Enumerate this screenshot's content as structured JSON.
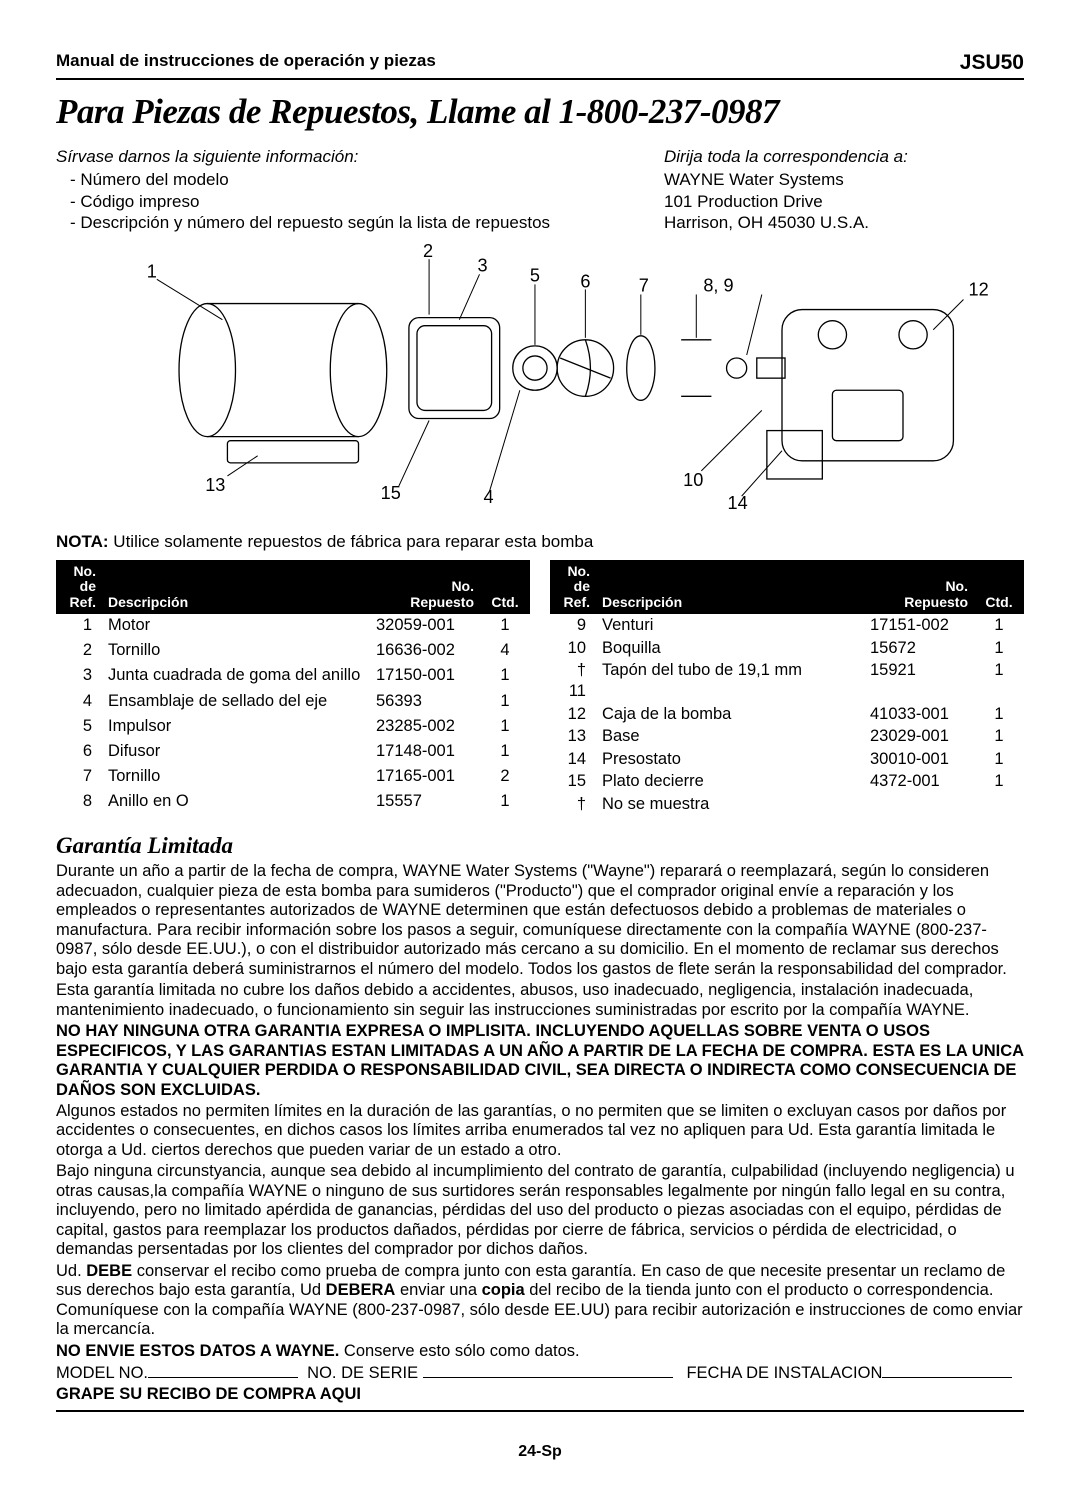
{
  "header": {
    "left": "Manual de instrucciones de operación y piezas",
    "right": "JSU50"
  },
  "title": "Para Piezas de Repuestos, Llame al 1-800-237-0987",
  "info": {
    "provide_heading": "Sírvase darnos la siguiente información:",
    "provide_lines": [
      "- Número del modelo",
      "- Código impreso",
      "- Descripción y número del repuesto según la lista de repuestos"
    ],
    "address_heading": "Dirija toda la correspondencia a:",
    "address_lines": [
      "WAYNE Water Systems",
      "101 Production Drive",
      "Harrison, OH   45030   U.S.A."
    ]
  },
  "diagram": {
    "callout_labels": [
      "1",
      "2",
      "3",
      "4",
      "5",
      "6",
      "7",
      "8, 9",
      "10",
      "12",
      "13",
      "14",
      "15"
    ]
  },
  "nota_bold": "NOTA:",
  "nota_text": " Utilice solamente repuestos de fábrica para reparar esta bomba",
  "table_headers": {
    "ref": "No.\nde\nRef.",
    "desc": "Descripción",
    "part": "No.\nRepuesto",
    "qty": "Ctd."
  },
  "parts_left": [
    {
      "ref": "1",
      "desc": "Motor",
      "part": "32059-001",
      "qty": "1"
    },
    {
      "ref": "2",
      "desc": "Tornillo",
      "part": "16636-002",
      "qty": "4"
    },
    {
      "ref": "3",
      "desc": "Junta cuadrada de goma del anillo",
      "part": "17150-001",
      "qty": "1"
    },
    {
      "ref": "4",
      "desc": "Ensamblaje de sellado del eje",
      "part": "56393",
      "qty": "1"
    },
    {
      "ref": "5",
      "desc": "Impulsor",
      "part": "23285-002",
      "qty": "1"
    },
    {
      "ref": "6",
      "desc": "Difusor",
      "part": "17148-001",
      "qty": "1"
    },
    {
      "ref": "7",
      "desc": "Tornillo",
      "part": "17165-001",
      "qty": "2"
    },
    {
      "ref": "8",
      "desc": "Anillo en O",
      "part": "15557",
      "qty": "1"
    }
  ],
  "parts_right": [
    {
      "ref": "9",
      "desc": "Venturi",
      "part": "17151-002",
      "qty": "1"
    },
    {
      "ref": "10",
      "desc": "Boquilla",
      "part": "15672",
      "qty": "1"
    },
    {
      "ref": "† 11",
      "desc": "Tapón del tubo de 19,1 mm",
      "part": "15921",
      "qty": "1"
    },
    {
      "ref": "12",
      "desc": "Caja de la bomba",
      "part": "41033-001",
      "qty": "1"
    },
    {
      "ref": "13",
      "desc": "Base",
      "part": "23029-001",
      "qty": "1"
    },
    {
      "ref": "14",
      "desc": "Presostato",
      "part": "30010-001",
      "qty": "1"
    },
    {
      "ref": "15",
      "desc": "Plato decierre",
      "part": "4372-001",
      "qty": "1"
    },
    {
      "ref": "†",
      "desc": "No se muestra",
      "part": "",
      "qty": ""
    }
  ],
  "warranty": {
    "title": "Garantía Limitada",
    "p1": "Durante un año a partir de la fecha de compra, WAYNE Water Systems (\"Wayne\") reparará o reemplazará, según lo consideren adecuadon, cualquier pieza de esta bomba para sumideros (\"Producto\") que el comprador original envíe a reparación y los empleados o representantes autorizados de WAYNE determinen que están defectuosos debido a problemas de materiales o manufactura. Para recibir información sobre los pasos a seguir, comuníquese directamente con la compañía WAYNE (800-237-0987, sólo desde EE.UU.), o con el distribuidor autorizado más cercano a su domicilio. En el momento de reclamar sus derechos bajo esta garantía deberá suministrarnos el número del modelo. Todos los gastos de flete serán la responsabilidad del comprador.",
    "p2": "Esta garantía limitada no cubre los daños debido a accidentes, abusos, uso inadecuado, negligencia, instalación inadecuada, mantenimiento inadecuado, o funcionamiento sin seguir las instrucciones suministradas por escrito por la compañía WAYNE.",
    "p3_bold": "NO HAY NINGUNA OTRA GARANTIA EXPRESA O IMPLISITA. INCLUYENDO AQUELLAS SOBRE VENTA O USOS ESPECIFICOS, Y LAS GARANTIAS ESTAN LIMITADAS A UN AÑO A PARTIR DE LA FECHA DE COMPRA. ESTA ES LA UNICA GARANTIA Y CUALQUIER PERDIDA O RESPONSABILIDAD CIVIL, SEA DIRECTA O INDIRECTA COMO CONSECUENCIA DE DAÑOS SON EXCLUIDAS.",
    "p4": "Algunos estados no permiten límites en la duración de las garantías, o no permiten que se limiten o excluyan casos por daños por accidentes o consecuentes, en dichos casos los límites arriba enumerados tal vez no apliquen para Ud. Esta garantía limitada le otorga a Ud. ciertos derechos que pueden variar de un estado a otro.",
    "p5": "Bajo ninguna circunstyancia, aunque sea debido al incumplimiento del contrato de garantía, culpabilidad (incluyendo negligencia) u otras causas,la compañía WAYNE o ninguno de sus surtidores serán responsables legalmente por ningún fallo legal en su contra, incluyendo, pero no limitado apérdida de ganancias, pérdidas del uso del producto o piezas asociadas con el equipo, pérdidas de capital, gastos para reemplazar los productos dañados, pérdidas por cierre de fábrica, servicios o pérdida de electricidad, o demandas persentadas por los clientes del comprador por dichos daños.",
    "p6a": "Ud. ",
    "p6b_bold": "DEBE",
    "p6c": " conservar el recibo como prueba de compra junto con esta garantía. En caso de que necesite presentar un reclamo de sus derechos bajo esta garantía, Ud ",
    "p6d_bold": "DEBERA",
    "p6e": " enviar una ",
    "p6f_bold": "copia",
    "p6g": " del recibo de la tienda junto con el producto o correspondencia. Comuníquese con la compañía WAYNE (800-237-0987, sólo desde EE.UU) para recibir autorización e instrucciones de como enviar la mercancía.",
    "p7_bold": "NO ENVIE ESTOS DATOS A WAYNE.",
    "p7_rest": " Conserve esto sólo como datos."
  },
  "record": {
    "model_label": "MODEL NO.",
    "serial_label": "NO. DE SERIE",
    "date_label": "FECHA DE INSTALACION",
    "staple": "GRAPE SU RECIBO DE COMPRA AQUI"
  },
  "page_number": "24-Sp"
}
